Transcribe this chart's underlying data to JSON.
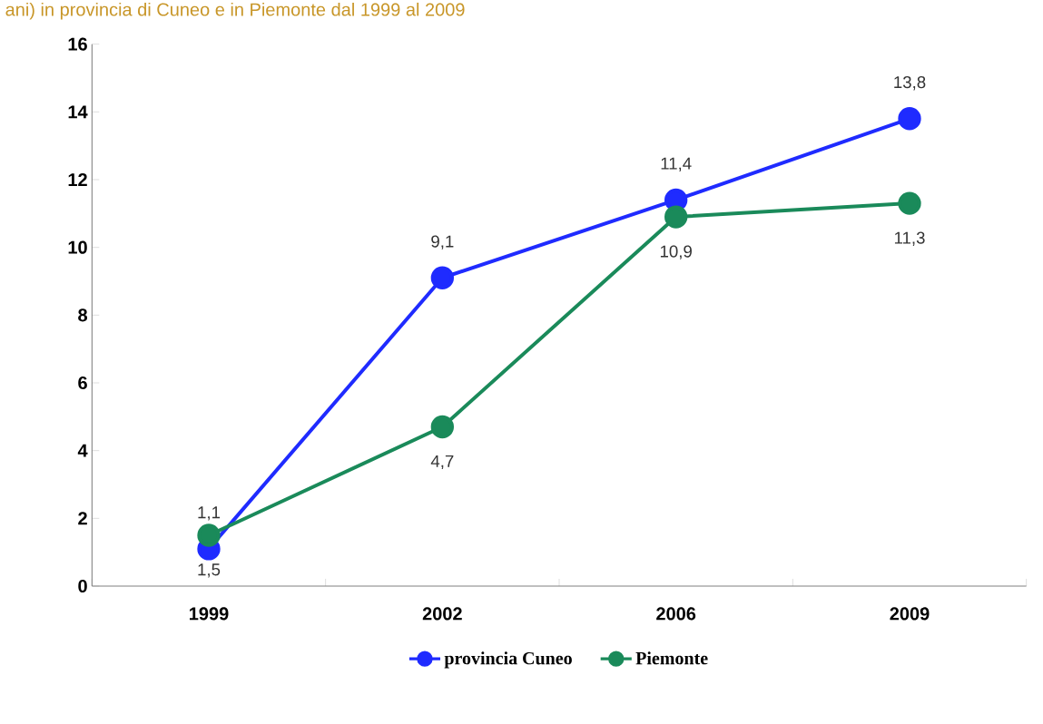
{
  "chart_data": {
    "type": "line",
    "title": "ani) in provincia di Cuneo e in Piemonte dal 1999  al 2009",
    "categories": [
      "1999",
      "2002",
      "2006",
      "2009"
    ],
    "series": [
      {
        "name": "provincia Cuneo",
        "color": "#1f2bff",
        "values": [
          1.1,
          9.1,
          11.4,
          13.8
        ],
        "value_labels": [
          "1,1",
          "9,1",
          "11,4",
          "13,8"
        ]
      },
      {
        "name": "Piemonte",
        "color": "#1a8a5a",
        "values": [
          1.5,
          4.7,
          10.9,
          11.3
        ],
        "value_labels": [
          "1,5",
          "4,7",
          "10,9",
          "11,3"
        ]
      }
    ],
    "ylim": [
      0,
      16
    ],
    "yticks": [
      0,
      2,
      4,
      6,
      8,
      10,
      12,
      14,
      16
    ],
    "grid": false,
    "legend": "bottom",
    "marker": "circle",
    "line_style": "solid"
  }
}
